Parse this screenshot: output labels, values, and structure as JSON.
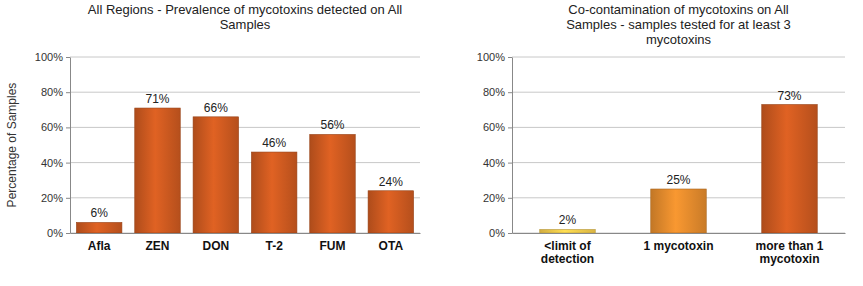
{
  "chart_data": [
    {
      "type": "bar",
      "title": "All Regions - Prevalence of mycotoxins detected on All Samples",
      "y_label": "Percentage of Samples",
      "categories": [
        "Afla",
        "ZEN",
        "DON",
        "T-2",
        "FUM",
        "OTA"
      ],
      "values": [
        6,
        71,
        66,
        46,
        56,
        24
      ],
      "value_labels": [
        "6%",
        "71%",
        "66%",
        "46%",
        "56%",
        "24%"
      ],
      "color": "#c9581f",
      "ylim": [
        0,
        100
      ],
      "yticks": [
        {
          "value": 0,
          "label": "0%"
        },
        {
          "value": 20,
          "label": "20%"
        },
        {
          "value": 40,
          "label": "40%"
        },
        {
          "value": 60,
          "label": "60%"
        },
        {
          "value": 80,
          "label": "80%"
        },
        {
          "value": 100,
          "label": "100%"
        }
      ],
      "grid": true,
      "data_labels": true
    },
    {
      "type": "bar",
      "title": "Co-contamination of mycotoxins on All Samples - samples tested for at least 3 mycotoxins",
      "categories": [
        "<limit of detection",
        "1 mycotoxin",
        "more than 1 mycotoxin"
      ],
      "values": [
        2,
        25,
        73
      ],
      "value_labels": [
        "2%",
        "25%",
        "73%"
      ],
      "colors": [
        "#f2c84b",
        "#e0892c",
        "#c9581f"
      ],
      "ylim": [
        0,
        100
      ],
      "yticks": [
        {
          "value": 0,
          "label": "0%"
        },
        {
          "value": 20,
          "label": "20%"
        },
        {
          "value": 40,
          "label": "40%"
        },
        {
          "value": 60,
          "label": "60%"
        },
        {
          "value": 80,
          "label": "80%"
        },
        {
          "value": 100,
          "label": "100%"
        }
      ],
      "grid": true,
      "data_labels": true
    }
  ]
}
